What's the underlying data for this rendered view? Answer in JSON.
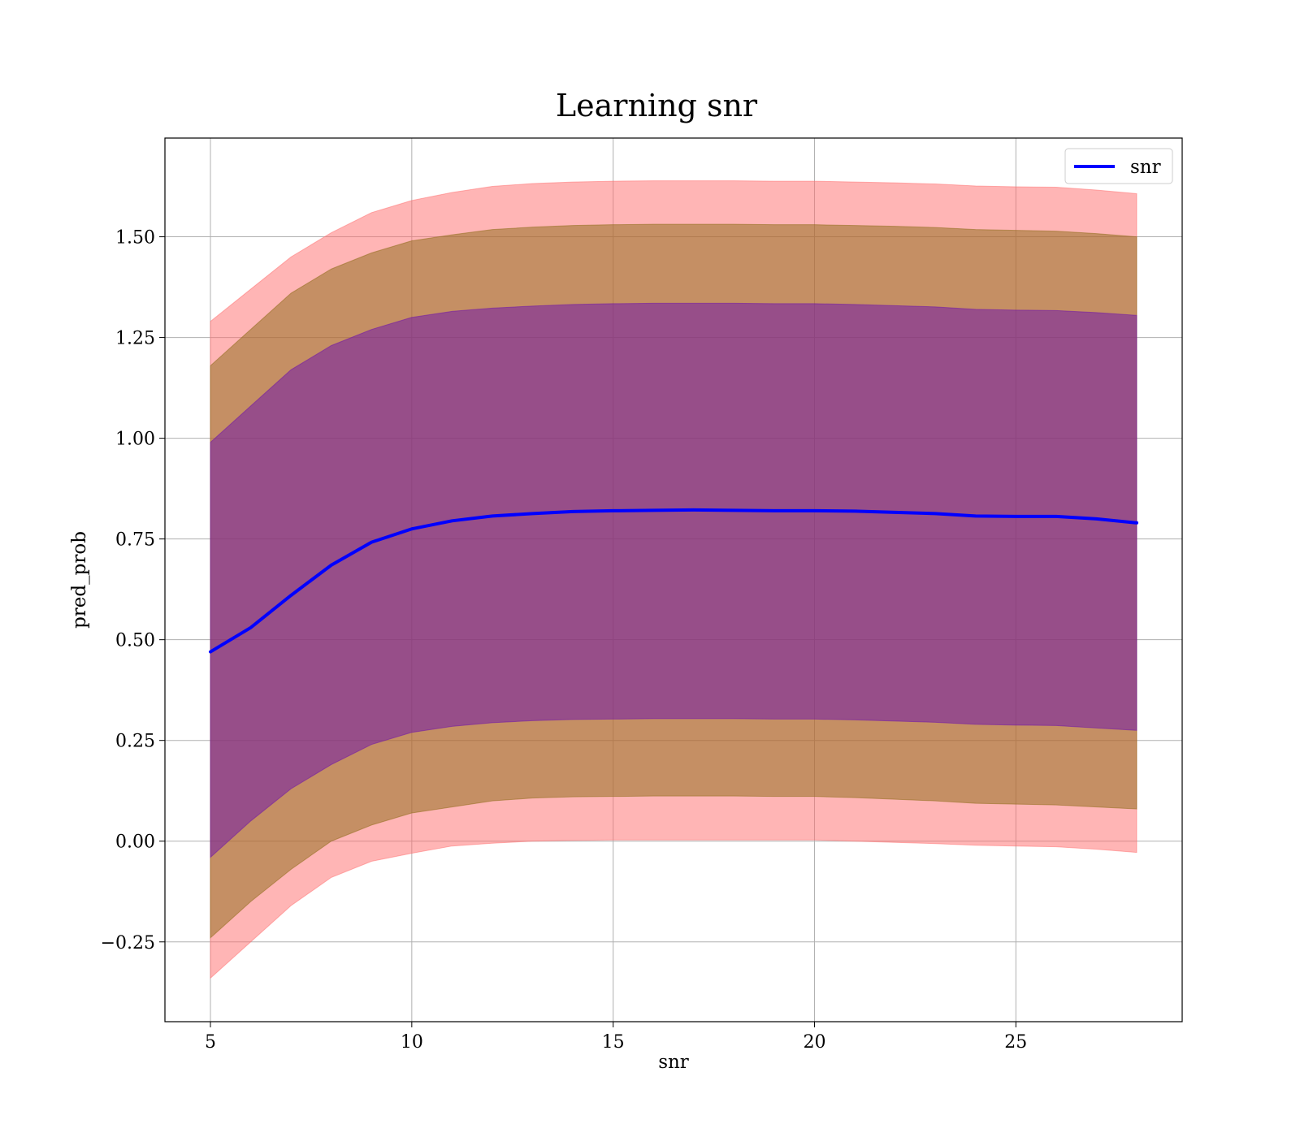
{
  "chart_data": {
    "type": "line",
    "title": "Learning snr",
    "xlabel": "snr",
    "ylabel": "pred_prob",
    "xlim": [
      3.87,
      29.13
    ],
    "ylim": [
      -0.448,
      1.745
    ],
    "xticks": [
      5,
      10,
      15,
      20,
      25
    ],
    "xtick_labels": [
      "5",
      "10",
      "15",
      "20",
      "25"
    ],
    "yticks": [
      -0.25,
      0,
      0.25,
      0.5,
      0.75,
      1.0,
      1.25,
      1.5
    ],
    "ytick_labels": [
      "−0.25",
      "0.00",
      "0.25",
      "0.50",
      "0.75",
      "1.00",
      "1.25",
      "1.50"
    ],
    "grid": true,
    "legend": {
      "position": "top-right",
      "entries": [
        "snr"
      ]
    },
    "x": [
      5,
      6,
      7,
      8,
      9,
      10,
      11,
      12,
      13,
      14,
      15,
      16,
      17,
      18,
      19,
      20,
      21,
      22,
      23,
      24,
      25,
      26,
      27,
      28
    ],
    "series": [
      {
        "name": "snr",
        "color": "#0000ff",
        "values": [
          0.47,
          0.53,
          0.61,
          0.685,
          0.742,
          0.775,
          0.795,
          0.807,
          0.813,
          0.818,
          0.82,
          0.821,
          0.822,
          0.821,
          0.82,
          0.82,
          0.819,
          0.816,
          0.813,
          0.807,
          0.806,
          0.806,
          0.8,
          0.79
        ]
      }
    ],
    "bands": [
      {
        "color": "#ff6b6b",
        "lower": [
          -0.34,
          -0.25,
          -0.16,
          -0.09,
          -0.05,
          -0.03,
          -0.012,
          -0.005,
          0.0,
          0.002,
          0.003,
          0.003,
          0.003,
          0.003,
          0.003,
          0.003,
          0.0,
          -0.003,
          -0.006,
          -0.01,
          -0.012,
          -0.014,
          -0.02,
          -0.028
        ],
        "upper": [
          1.29,
          1.37,
          1.45,
          1.51,
          1.56,
          1.59,
          1.61,
          1.625,
          1.632,
          1.636,
          1.638,
          1.639,
          1.639,
          1.639,
          1.638,
          1.638,
          1.636,
          1.634,
          1.631,
          1.626,
          1.624,
          1.623,
          1.616,
          1.607
        ]
      },
      {
        "color": "#8b6914",
        "lower": [
          -0.24,
          -0.15,
          -0.07,
          0.0,
          0.04,
          0.07,
          0.085,
          0.1,
          0.107,
          0.11,
          0.111,
          0.112,
          0.112,
          0.112,
          0.111,
          0.111,
          0.108,
          0.104,
          0.1,
          0.094,
          0.092,
          0.09,
          0.085,
          0.08
        ],
        "upper": [
          1.18,
          1.27,
          1.36,
          1.42,
          1.46,
          1.49,
          1.505,
          1.518,
          1.524,
          1.528,
          1.53,
          1.531,
          1.531,
          1.531,
          1.53,
          1.53,
          1.528,
          1.526,
          1.523,
          1.518,
          1.516,
          1.514,
          1.508,
          1.5
        ]
      },
      {
        "color": "#6a0dad",
        "lower": [
          -0.04,
          0.05,
          0.13,
          0.19,
          0.24,
          0.27,
          0.285,
          0.294,
          0.299,
          0.302,
          0.303,
          0.304,
          0.304,
          0.304,
          0.303,
          0.303,
          0.301,
          0.298,
          0.295,
          0.29,
          0.288,
          0.287,
          0.281,
          0.275
        ],
        "upper": [
          0.99,
          1.08,
          1.17,
          1.23,
          1.27,
          1.3,
          1.315,
          1.323,
          1.328,
          1.332,
          1.334,
          1.335,
          1.335,
          1.335,
          1.334,
          1.334,
          1.332,
          1.329,
          1.326,
          1.32,
          1.318,
          1.317,
          1.312,
          1.305
        ]
      }
    ]
  }
}
